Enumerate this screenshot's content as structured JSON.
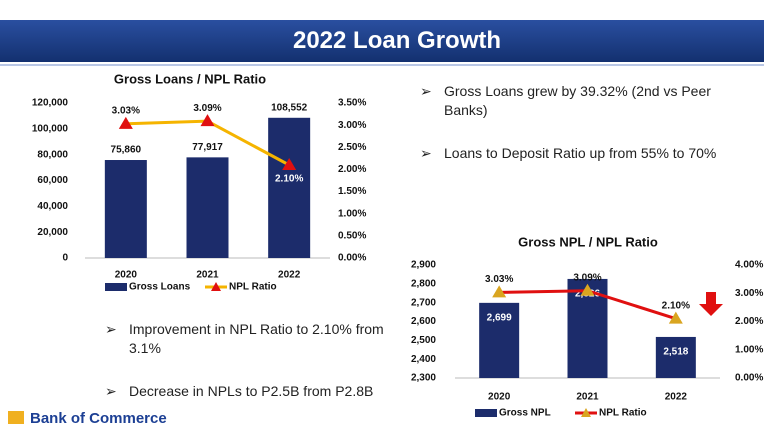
{
  "header": {
    "title": "2022 Loan Growth"
  },
  "bullets_top": [
    "Gross Loans grew by 39.32% (2nd vs Peer Banks)",
    "Loans to Deposit Ratio up from 55% to 70%"
  ],
  "bullets_bottom": [
    "Improvement in NPL Ratio to 2.10% from 3.1%",
    "Decrease in NPLs to P2.5B from P2.8B"
  ],
  "logo": "Bank of Commerce",
  "chart_data": [
    {
      "type": "bar",
      "title": "Gross Loans / NPL Ratio",
      "categories": [
        "2020",
        "2021",
        "2022"
      ],
      "series": [
        {
          "name": "Gross Loans",
          "color": "#1c2c6b",
          "values": [
            75860,
            77917,
            108552
          ],
          "value_labels": [
            "75,860",
            "77,917",
            "108,552"
          ]
        },
        {
          "name": "NPL Ratio",
          "color": "#f5b400",
          "marker_color": "#e01010",
          "axis": "y2",
          "values": [
            3.03,
            3.09,
            2.1
          ],
          "value_labels": [
            "3.03%",
            "3.09%",
            "2.10%"
          ]
        }
      ],
      "ylim": [
        0,
        120000
      ],
      "yticks": [
        0,
        {
          "value": 20000,
          "label": "20,000"
        },
        {
          "value": 40000,
          "label": "40,000"
        },
        {
          "value": 60000,
          "label": "60,000"
        },
        {
          "value": 80000,
          "label": "80,000"
        },
        {
          "value": 100000,
          "label": "100,000"
        },
        {
          "value": 120000,
          "label": "120,000"
        }
      ],
      "y2lim": [
        0,
        3.5
      ],
      "y2ticks": [
        {
          "value": 0,
          "label": "0.00%"
        },
        {
          "value": 0.5,
          "label": "0.50%"
        },
        {
          "value": 1,
          "label": "1.00%"
        },
        {
          "value": 1.5,
          "label": "1.50%"
        },
        {
          "value": 2,
          "label": "2.00%"
        },
        {
          "value": 2.5,
          "label": "2.50%"
        },
        {
          "value": 3,
          "label": "3.00%"
        },
        {
          "value": 3.5,
          "label": "3.50%"
        }
      ]
    },
    {
      "type": "bar",
      "title": "Gross NPL / NPL Ratio",
      "categories": [
        "2020",
        "2021",
        "2022"
      ],
      "series": [
        {
          "name": "Gross NPL",
          "color": "#1c2c6b",
          "values": [
            2699,
            2826,
            2518
          ],
          "value_labels": [
            "2,699",
            "2,826",
            "2,518"
          ]
        },
        {
          "name": "NPL Ratio",
          "color": "#e01010",
          "marker_color": "#d9a520",
          "axis": "y2",
          "values": [
            3.03,
            3.09,
            2.1
          ],
          "value_labels": [
            "3.03%",
            "3.09%",
            "2.10%"
          ]
        }
      ],
      "ylim": [
        2300,
        2900
      ],
      "yticks": [
        {
          "value": 2300,
          "label": "2,300"
        },
        {
          "value": 2400,
          "label": "2,400"
        },
        {
          "value": 2500,
          "label": "2,500"
        },
        {
          "value": 2600,
          "label": "2,600"
        },
        {
          "value": 2700,
          "label": "2,700"
        },
        {
          "value": 2800,
          "label": "2,800"
        },
        {
          "value": 2900,
          "label": "2,900"
        }
      ],
      "y2lim": [
        0,
        4
      ],
      "y2ticks": [
        {
          "value": 0,
          "label": "0.00%"
        },
        {
          "value": 1,
          "label": "1.00%"
        },
        {
          "value": 2,
          "label": "2.00%"
        },
        {
          "value": 3,
          "label": "3.00%"
        },
        {
          "value": 4,
          "label": "4.00%"
        }
      ]
    }
  ]
}
